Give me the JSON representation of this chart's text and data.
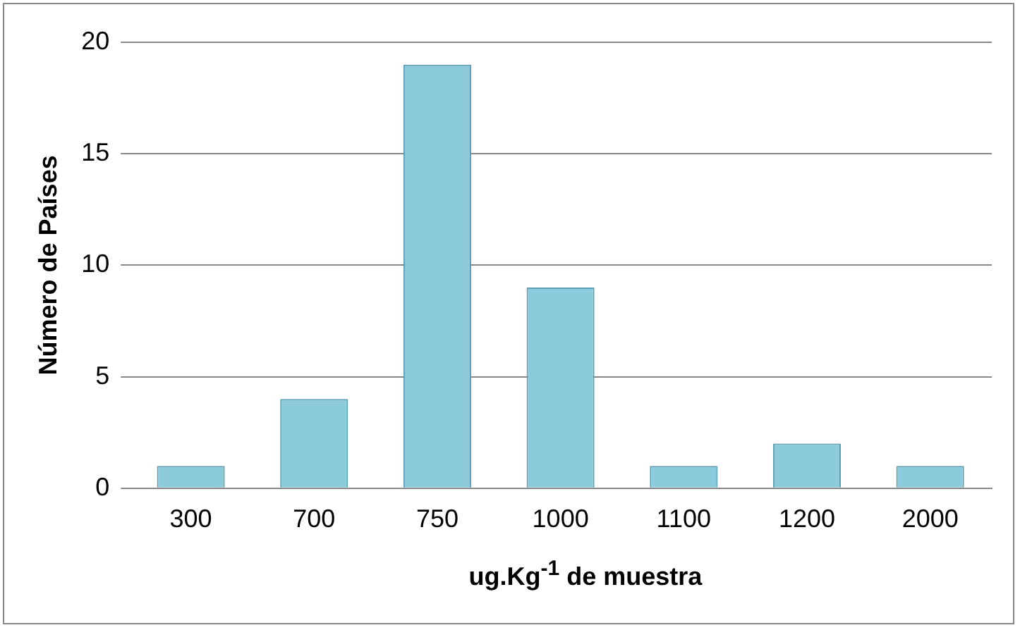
{
  "chart_data": {
    "type": "bar",
    "xlabel": "ug.Kg$^{-1}$ de muestra",
    "ylabel": "Número de Países",
    "categories": [
      "300",
      "700",
      "750",
      "1000",
      "1100",
      "1200",
      "2000"
    ],
    "values": [
      1,
      4,
      19,
      9,
      1,
      2,
      1
    ],
    "color": "#8ccbdc",
    "ylim": [
      0,
      20
    ],
    "yticks": [
      0,
      5,
      10,
      15,
      20
    ],
    "grid": "y",
    "legend": false
  }
}
